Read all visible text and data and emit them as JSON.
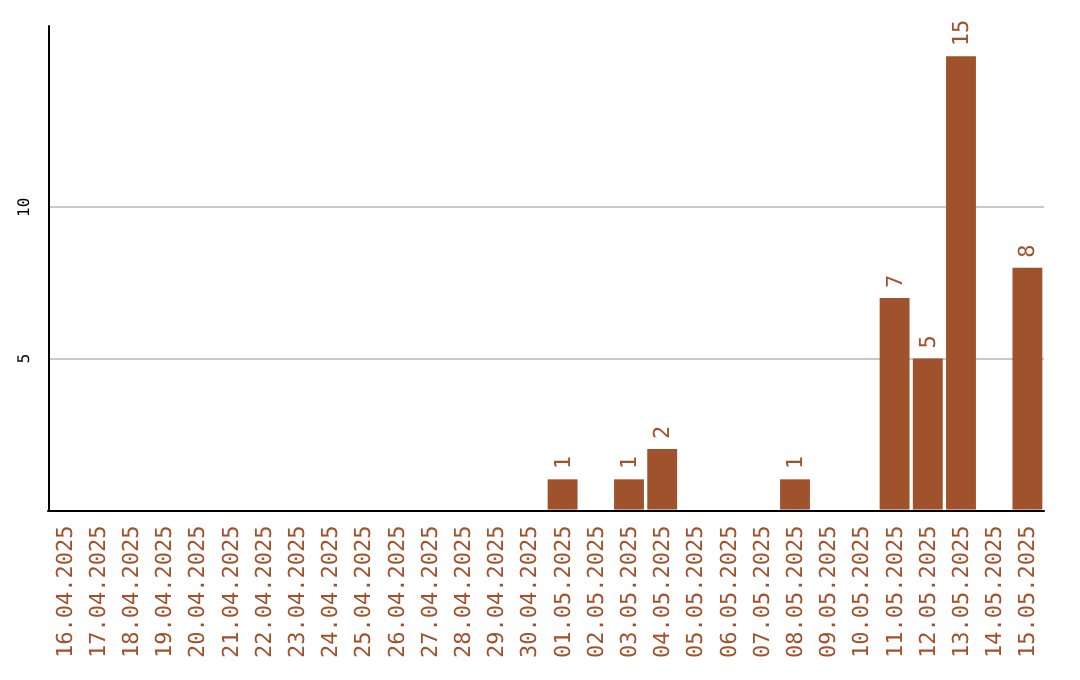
{
  "chart_data": {
    "type": "bar",
    "categories": [
      "16.04.2025",
      "17.04.2025",
      "18.04.2025",
      "19.04.2025",
      "20.04.2025",
      "21.04.2025",
      "22.04.2025",
      "23.04.2025",
      "24.04.2025",
      "25.04.2025",
      "26.04.2025",
      "27.04.2025",
      "28.04.2025",
      "29.04.2025",
      "30.04.2025",
      "01.05.2025",
      "02.05.2025",
      "03.05.2025",
      "04.05.2025",
      "05.05.2025",
      "06.05.2025",
      "07.05.2025",
      "08.05.2025",
      "09.05.2025",
      "10.05.2025",
      "11.05.2025",
      "12.05.2025",
      "13.05.2025",
      "14.05.2025",
      "15.05.2025"
    ],
    "values": [
      0,
      0,
      0,
      0,
      0,
      0,
      0,
      0,
      0,
      0,
      0,
      0,
      0,
      0,
      0,
      1,
      0,
      1,
      2,
      0,
      0,
      0,
      1,
      0,
      0,
      7,
      5,
      15,
      0,
      8
    ],
    "value_labels": [
      null,
      null,
      null,
      null,
      null,
      null,
      null,
      null,
      null,
      null,
      null,
      null,
      null,
      null,
      null,
      "1",
      null,
      "1",
      "2",
      null,
      null,
      null,
      "1",
      null,
      null,
      "7",
      "5",
      "15",
      null,
      "8"
    ],
    "color": "#a0522d",
    "ylim": [
      0,
      16
    ],
    "yticks": [
      5,
      10
    ],
    "grid": "y"
  }
}
